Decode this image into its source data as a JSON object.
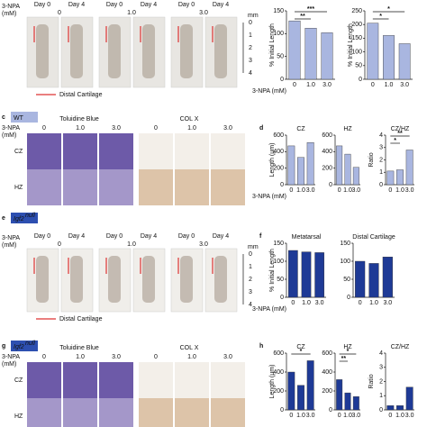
{
  "row_a": {
    "npa": "3-NPA",
    "mm_label": "(mM)",
    "days": [
      "Day 0",
      "Day 4",
      "Day 0",
      "Day 4",
      "Day 0",
      "Day 4"
    ],
    "doses": [
      "0",
      "1.0",
      "3.0"
    ],
    "scale_unit": "mm",
    "scale_ticks": [
      "0",
      "1",
      "2",
      "3",
      "4"
    ],
    "legend": "Distal Cartilage"
  },
  "row_c": {
    "letter": "c",
    "genotype": "WT",
    "npa": "3-NPA",
    "mm_label": "(mM)",
    "stains": [
      "Toluidine Blue",
      "COL X"
    ],
    "doses": [
      "0",
      "1.0",
      "3.0",
      "0",
      "1.0",
      "3.0"
    ],
    "zones": [
      "CZ",
      "HZ"
    ]
  },
  "row_e": {
    "letter": "e",
    "genotype": "Igf2",
    "genotype_sup": "null",
    "npa": "3-NPA",
    "mm_label": "(mM)",
    "days": [
      "Day 0",
      "Day 4",
      "Day 0",
      "Day 4",
      "Day 0",
      "Day 4"
    ],
    "doses": [
      "0",
      "1.0",
      "3.0"
    ],
    "scale_unit": "mm",
    "scale_ticks": [
      "0",
      "1",
      "2",
      "3",
      "4"
    ],
    "legend": "Distal Cartilage"
  },
  "row_g": {
    "letter": "g",
    "genotype": "Igf2",
    "genotype_sup": "null",
    "npa": "3-NPA",
    "mm_label": "(mM)",
    "stains": [
      "Toluidine Blue",
      "COL X"
    ],
    "doses": [
      "0",
      "1.0",
      "3.0",
      "0",
      "1.0",
      "3.0"
    ],
    "zones": [
      "CZ",
      "HZ"
    ]
  },
  "chart_data": [
    {
      "type": "bar",
      "ylabel": "% Initial Length",
      "xlabel": "3-NPA (mM)",
      "categories": [
        "0",
        "1.0",
        "3.0"
      ],
      "values": [
        128,
        112,
        102
      ],
      "ylim": [
        0,
        150
      ],
      "yticks": [
        0,
        50,
        100,
        150
      ],
      "color": "#a9b6e0",
      "annotations": [
        "***",
        "**"
      ]
    },
    {
      "type": "bar",
      "ylabel": "% Initial Length",
      "categories": [
        "0",
        "1.0",
        "3.0"
      ],
      "values": [
        205,
        160,
        130
      ],
      "ylim": [
        0,
        250
      ],
      "yticks": [
        0,
        50,
        100,
        150,
        200,
        250
      ],
      "color": "#a9b6e0",
      "annotations": [
        "*",
        "*"
      ]
    },
    {
      "type": "bar",
      "panel": "d",
      "title": "CZ",
      "ylabel": "Length (μm)",
      "xlabel": "3-NPA (mM)",
      "categories": [
        "0",
        "1.0",
        "3.0"
      ],
      "values": [
        470,
        330,
        510
      ],
      "ylim": [
        0,
        600
      ],
      "yticks": [
        0,
        200,
        400,
        600
      ],
      "color": "#a9b6e0"
    },
    {
      "type": "bar",
      "title": "HZ",
      "categories": [
        "0",
        "1.0",
        "3.0"
      ],
      "values": [
        470,
        370,
        210
      ],
      "ylim": [
        0,
        600
      ],
      "yticks": [
        0,
        200,
        400,
        600
      ],
      "color": "#a9b6e0"
    },
    {
      "type": "bar",
      "title": "CZ/HZ",
      "ylabel": "Ratio",
      "categories": [
        "0",
        "1.0",
        "3.0"
      ],
      "values": [
        1.1,
        1.2,
        2.8
      ],
      "ylim": [
        0,
        4
      ],
      "yticks": [
        0,
        1,
        2,
        3,
        4
      ],
      "color": "#a9b6e0",
      "annotations": [
        "**",
        "*"
      ]
    },
    {
      "type": "bar",
      "panel": "f",
      "title": "Metatarsal",
      "ylabel": "% Initial Length",
      "xlabel": "3-NPA (mM)",
      "categories": [
        "0",
        "1.0",
        "3.0"
      ],
      "values": [
        130,
        126,
        124
      ],
      "ylim": [
        0,
        150
      ],
      "yticks": [
        0,
        50,
        100,
        150
      ],
      "color": "#1e3a96"
    },
    {
      "type": "bar",
      "title": "Distal Cartilage",
      "categories": [
        "0",
        "1.0",
        "3.0"
      ],
      "values": [
        100,
        94,
        112
      ],
      "ylim": [
        0,
        150
      ],
      "yticks": [
        0,
        50,
        100,
        150
      ],
      "color": "#1e3a96"
    },
    {
      "type": "bar",
      "panel": "h",
      "title": "CZ",
      "ylabel": "Length (μm)",
      "categories": [
        "0",
        "1.0",
        "3.0"
      ],
      "values": [
        400,
        260,
        520
      ],
      "ylim": [
        0,
        600
      ],
      "yticks": [
        0,
        200,
        400,
        600
      ],
      "color": "#1e3a96",
      "annotations": [
        "*"
      ]
    },
    {
      "type": "bar",
      "title": "HZ",
      "categories": [
        "0",
        "1.0",
        "3.0"
      ],
      "values": [
        320,
        180,
        140
      ],
      "ylim": [
        0,
        600
      ],
      "yticks": [
        0,
        200,
        400,
        600
      ],
      "color": "#1e3a96",
      "annotations": [
        "*",
        "**"
      ]
    },
    {
      "type": "bar",
      "title": "CZ/HZ",
      "ylabel": "Ratio",
      "categories": [
        "0",
        "1.0",
        "3.0"
      ],
      "values": [
        0.3,
        0.3,
        1.6
      ],
      "ylim": [
        0,
        4
      ],
      "yticks": [
        0,
        1,
        2,
        3,
        4
      ],
      "color": "#1e3a96"
    }
  ]
}
